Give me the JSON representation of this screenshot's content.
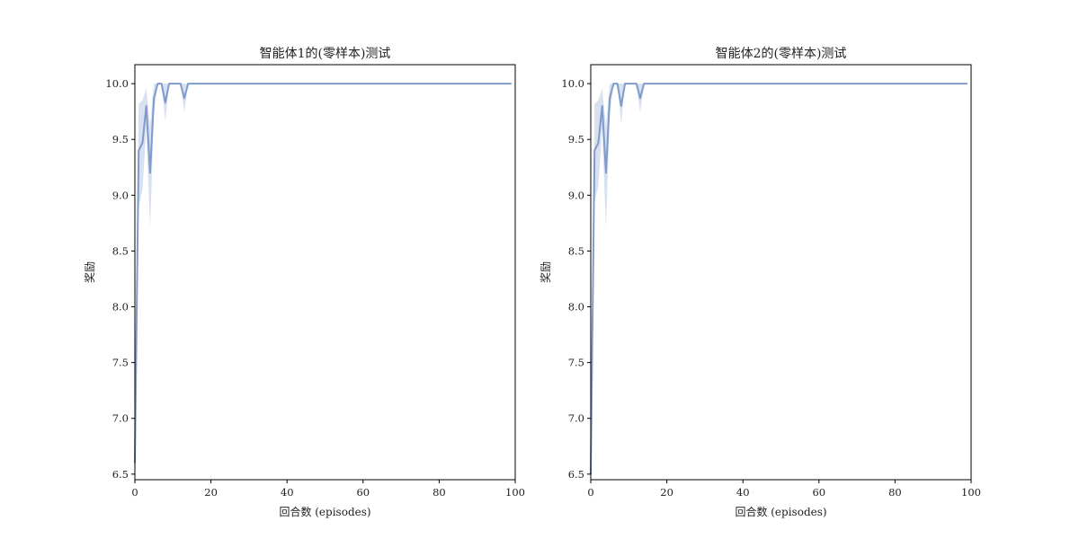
{
  "chart_data": [
    {
      "type": "line",
      "title": "智能体1的(零样本)测试",
      "xlabel": "回合数 (episodes)",
      "ylabel": "奖励",
      "xlim": [
        0,
        100
      ],
      "ylim": [
        6.45,
        10.17
      ],
      "xticks": [
        "0",
        "20",
        "40",
        "60",
        "80",
        "100"
      ],
      "yticks": [
        "6.5",
        "7.0",
        "7.5",
        "8.0",
        "8.5",
        "9.0",
        "9.5",
        "10.0"
      ],
      "grid": false,
      "legend": "none",
      "color": "#7f9acb",
      "x": [
        0,
        1,
        2,
        3,
        4,
        5,
        6,
        7,
        8,
        9,
        10,
        11,
        12,
        13,
        14,
        15,
        20,
        30,
        40,
        50,
        60,
        70,
        80,
        90,
        99
      ],
      "y": [
        6.6,
        9.4,
        9.47,
        9.8,
        9.2,
        9.87,
        10.0,
        10.0,
        9.83,
        10.0,
        10.0,
        10.0,
        10.0,
        9.87,
        10.0,
        10.0,
        10.0,
        10.0,
        10.0,
        10.0,
        10.0,
        10.0,
        10.0,
        10.0,
        10.0
      ],
      "ci_lower": [
        6.2,
        8.9,
        9.05,
        9.6,
        8.7,
        9.72,
        10.0,
        10.0,
        9.66,
        10.0,
        10.0,
        10.0,
        10.0,
        9.74,
        10.0,
        10.0,
        10.0,
        10.0,
        10.0,
        10.0,
        10.0,
        10.0,
        10.0,
        10.0,
        10.0
      ],
      "ci_upper": [
        7.0,
        9.82,
        9.85,
        9.96,
        9.62,
        10.0,
        10.0,
        10.0,
        10.0,
        10.0,
        10.0,
        10.0,
        10.0,
        10.0,
        10.0,
        10.0,
        10.0,
        10.0,
        10.0,
        10.0,
        10.0,
        10.0,
        10.0,
        10.0,
        10.0
      ]
    },
    {
      "type": "line",
      "title": "智能体2的(零样本)测试",
      "xlabel": "回合数 (episodes)",
      "ylabel": "奖励",
      "xlim": [
        0,
        100
      ],
      "ylim": [
        6.45,
        10.17
      ],
      "xticks": [
        "0",
        "20",
        "40",
        "60",
        "80",
        "100"
      ],
      "yticks": [
        "6.5",
        "7.0",
        "7.5",
        "8.0",
        "8.5",
        "9.0",
        "9.5",
        "10.0"
      ],
      "grid": false,
      "legend": "none",
      "color": "#7f9acb",
      "x": [
        0,
        1,
        2,
        3,
        4,
        5,
        6,
        7,
        8,
        9,
        10,
        11,
        12,
        13,
        14,
        15,
        20,
        30,
        40,
        50,
        60,
        70,
        80,
        90,
        99
      ],
      "y": [
        6.5,
        9.4,
        9.47,
        9.8,
        9.2,
        9.87,
        10.0,
        10.0,
        9.8,
        10.0,
        10.0,
        10.0,
        10.0,
        9.87,
        10.0,
        10.0,
        10.0,
        10.0,
        10.0,
        10.0,
        10.0,
        10.0,
        10.0,
        10.0,
        10.0
      ],
      "ci_lower": [
        6.2,
        8.95,
        9.08,
        9.6,
        8.7,
        9.72,
        10.0,
        10.0,
        9.64,
        10.0,
        10.0,
        10.0,
        10.0,
        9.74,
        10.0,
        10.0,
        10.0,
        10.0,
        10.0,
        10.0,
        10.0,
        10.0,
        10.0,
        10.0,
        10.0
      ],
      "ci_upper": [
        6.9,
        9.82,
        9.85,
        9.96,
        9.62,
        10.0,
        10.0,
        10.0,
        10.0,
        10.0,
        10.0,
        10.0,
        10.0,
        10.0,
        10.0,
        10.0,
        10.0,
        10.0,
        10.0,
        10.0,
        10.0,
        10.0,
        10.0,
        10.0,
        10.0
      ]
    }
  ]
}
